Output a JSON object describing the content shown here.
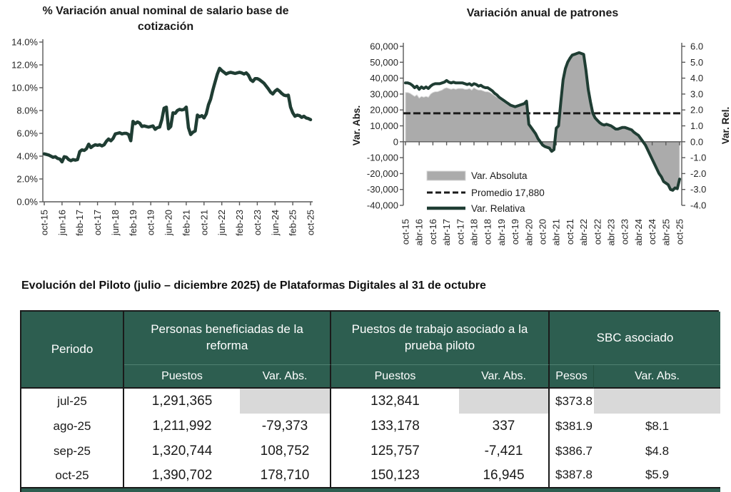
{
  "colors": {
    "chart_line_green": "#1f3d33",
    "area_gray": "#ababab",
    "dashed_black": "#1a1a1a",
    "table_header_green": "#2d5e50",
    "shaded_cell_gray": "#d9d9d9"
  },
  "chart_data": [
    {
      "type": "line",
      "title": "% Variación anual nominal de salario base de cotización",
      "title_lines": [
        "% Variación anual nominal de salario base de",
        "cotización"
      ],
      "ylim": [
        0,
        14
      ],
      "grid": false,
      "legend": "none",
      "y_tick_labels": [
        "0.0%",
        "2.0%",
        "4.0%",
        "6.0%",
        "8.0%",
        "10.0%",
        "12.0%",
        "14.0%"
      ],
      "x_tick_labels": [
        "oct-15",
        "jun-16",
        "feb-17",
        "oct-17",
        "jun-18",
        "feb-19",
        "oct-19",
        "jun-20",
        "feb-21",
        "oct-21",
        "jun-22",
        "feb-23",
        "oct-23",
        "jun-24",
        "feb-25",
        "oct-25"
      ],
      "x_monthly_range": "oct-15 to oct-25",
      "series": [
        {
          "name": "% variación anual",
          "color": "#1f3d33",
          "values": [
            4.2,
            4.15,
            4.1,
            4.0,
            3.9,
            3.95,
            3.8,
            3.75,
            3.5,
            3.95,
            3.9,
            3.7,
            3.6,
            3.7,
            3.65,
            3.7,
            4.4,
            4.55,
            4.5,
            4.65,
            5.05,
            4.75,
            4.9,
            5.0,
            4.95,
            5.0,
            4.9,
            5.0,
            5.3,
            5.5,
            5.35,
            5.55,
            5.95,
            6.0,
            6.05,
            5.95,
            6.0,
            6.0,
            5.9,
            5.35,
            7.05,
            6.85,
            7.0,
            6.9,
            6.6,
            6.65,
            6.6,
            6.55,
            6.6,
            6.65,
            6.35,
            6.5,
            6.55,
            7.2,
            8.2,
            8.3,
            6.4,
            6.6,
            7.8,
            7.75,
            8.0,
            8.1,
            8.05,
            8.1,
            8.3,
            6.5,
            5.9,
            6.1,
            6.2,
            7.6,
            7.45,
            7.55,
            7.35,
            7.7,
            8.5,
            9.0,
            9.8,
            10.5,
            11.2,
            11.7,
            11.5,
            11.35,
            11.2,
            11.3,
            11.35,
            11.3,
            11.25,
            11.3,
            11.35,
            11.3,
            11.2,
            11.3,
            11.1,
            10.7,
            10.55,
            10.8,
            10.8,
            10.7,
            10.55,
            10.4,
            10.15,
            9.9,
            9.6,
            9.45,
            9.7,
            9.85,
            9.7,
            9.5,
            9.35,
            9.3,
            9.35,
            8.3,
            7.8,
            7.5,
            7.6,
            7.55,
            7.4,
            7.5,
            7.35,
            7.3,
            7.2
          ]
        }
      ]
    },
    {
      "type": "combo_area_line",
      "title": "Variación anual de patrones",
      "ylabel_left": "Var. Abs.",
      "ylabel_right": "Var. Rel.",
      "ylim_left": [
        -40000,
        60000
      ],
      "ylim_right": [
        -4,
        6
      ],
      "grid": false,
      "legend_position": "inside-bottom-left",
      "y_tick_labels_left": [
        "-40,000",
        "-30,000",
        "-20,000",
        "-10,000",
        "0",
        "10,000",
        "20,000",
        "30,000",
        "40,000",
        "50,000",
        "60,000"
      ],
      "y_tick_labels_right": [
        "-4.0",
        "-3.0",
        "-2.0",
        "-1.0",
        "0.0",
        "1.0",
        "2.0",
        "3.0",
        "4.0",
        "5.0",
        "6.0"
      ],
      "x_tick_labels": [
        "oct-15",
        "abr-16",
        "oct-16",
        "abr-17",
        "oct-17",
        "abr-18",
        "oct-18",
        "abr-19",
        "oct-19",
        "abr-20",
        "oct-20",
        "abr-21",
        "oct-21",
        "abr-22",
        "oct-22",
        "abr-23",
        "oct-23",
        "abr-24",
        "oct-24",
        "abr-25",
        "oct-25"
      ],
      "x_monthly_range": "oct-15 to oct-25",
      "series": [
        {
          "name": "Var. Absoluta",
          "type": "area",
          "axis": "left",
          "color": "#ababab",
          "values": [
            31000,
            31000,
            30500,
            29500,
            28500,
            29500,
            27500,
            28500,
            28000,
            28500,
            28000,
            30000,
            31000,
            31500,
            31500,
            32000,
            32500,
            33500,
            34000,
            33500,
            33000,
            33500,
            33000,
            33500,
            33500,
            33500,
            33000,
            33000,
            33500,
            32500,
            34000,
            33000,
            32500,
            32500,
            32000,
            31500,
            31500,
            31000,
            30000,
            29000,
            28000,
            27000,
            26000,
            25000,
            24000,
            23000,
            22500,
            22000,
            22000,
            22500,
            23000,
            23500,
            24000,
            25500,
            12000,
            9000,
            7000,
            5000,
            2000,
            0,
            -2000,
            -3000,
            -4000,
            -4500,
            -6000,
            -5500,
            8000,
            10000,
            25000,
            38000,
            45000,
            49000,
            52000,
            54000,
            55000,
            55500,
            55500,
            55000,
            54500,
            45000,
            33000,
            25000,
            18000,
            15000,
            13500,
            12000,
            11000,
            10500,
            11000,
            10500,
            10000,
            9000,
            8000,
            8000,
            8500,
            9000,
            9000,
            8500,
            8000,
            7500,
            6000,
            5000,
            4000,
            2000,
            0,
            -2000,
            -5000,
            -8000,
            -11000,
            -14000,
            -17000,
            -20000,
            -22000,
            -25000,
            -26000,
            -27000,
            -30000,
            -30500,
            -29000,
            -29500,
            -23500
          ]
        },
        {
          "name": "Promedio 17,880",
          "type": "dashed_line",
          "axis": "left",
          "color": "#1a1a1a",
          "value": 17880
        },
        {
          "name": "Var. Relativa",
          "type": "line",
          "axis": "right",
          "color": "#1f3d33",
          "values": [
            3.7,
            3.7,
            3.65,
            3.55,
            3.4,
            3.5,
            3.3,
            3.45,
            3.35,
            3.45,
            3.35,
            3.5,
            3.6,
            3.65,
            3.65,
            3.65,
            3.7,
            3.75,
            3.85,
            3.75,
            3.7,
            3.75,
            3.7,
            3.7,
            3.7,
            3.7,
            3.65,
            3.6,
            3.65,
            3.55,
            3.65,
            3.6,
            3.5,
            3.55,
            3.45,
            3.4,
            3.4,
            3.3,
            3.2,
            3.05,
            2.95,
            2.8,
            2.7,
            2.6,
            2.5,
            2.4,
            2.3,
            2.25,
            2.2,
            2.25,
            2.3,
            2.35,
            2.4,
            2.55,
            1.1,
            0.9,
            0.7,
            0.5,
            0.2,
            0.0,
            -0.2,
            -0.3,
            -0.35,
            -0.4,
            -0.6,
            -0.5,
            0.85,
            1.0,
            2.5,
            3.9,
            4.6,
            5.0,
            5.25,
            5.45,
            5.5,
            5.55,
            5.6,
            5.55,
            5.5,
            4.5,
            3.3,
            2.5,
            1.8,
            1.5,
            1.35,
            1.2,
            1.1,
            1.05,
            1.1,
            1.05,
            1.0,
            0.9,
            0.8,
            0.8,
            0.85,
            0.9,
            0.9,
            0.85,
            0.8,
            0.75,
            0.6,
            0.5,
            0.4,
            0.2,
            0.0,
            -0.2,
            -0.5,
            -0.8,
            -1.1,
            -1.4,
            -1.7,
            -2.0,
            -2.2,
            -2.5,
            -2.6,
            -2.7,
            -3.0,
            -3.05,
            -2.9,
            -2.95,
            -2.35
          ]
        }
      ]
    }
  ],
  "table": {
    "title": "Evolución del Piloto (julio – diciembre 2025) de Plataformas Digitales al 31 de octubre",
    "col_groups": [
      {
        "label": "Periodo"
      },
      {
        "label": "Personas beneficiadas de la reforma",
        "sub": [
          "Puestos",
          "Var. Abs."
        ]
      },
      {
        "label": "Puestos de trabajo asociado a la prueba piloto",
        "sub": [
          "Puestos",
          "Var. Abs."
        ]
      },
      {
        "label": "SBC asociado",
        "sub": [
          "Pesos",
          "Var. Abs."
        ]
      }
    ],
    "rows": [
      {
        "periodo": "jul-25",
        "c1": "1,291,365",
        "c2": "",
        "c3": "132,841",
        "c4": "",
        "c5": "$373.8",
        "c6": ""
      },
      {
        "periodo": "ago-25",
        "c1": "1,211,992",
        "c2": "-79,373",
        "c3": "133,178",
        "c4": "337",
        "c5": "$381.9",
        "c6": "$8.1"
      },
      {
        "periodo": "sep-25",
        "c1": "1,320,744",
        "c2": "108,752",
        "c3": "125,757",
        "c4": "-7,421",
        "c5": "$386.7",
        "c6": "$4.8"
      },
      {
        "periodo": "oct-25",
        "c1": "1,390,702",
        "c2": "178,710",
        "c3": "150,123",
        "c4": "16,945",
        "c5": "$387.8",
        "c6": "$5.9"
      }
    ]
  }
}
